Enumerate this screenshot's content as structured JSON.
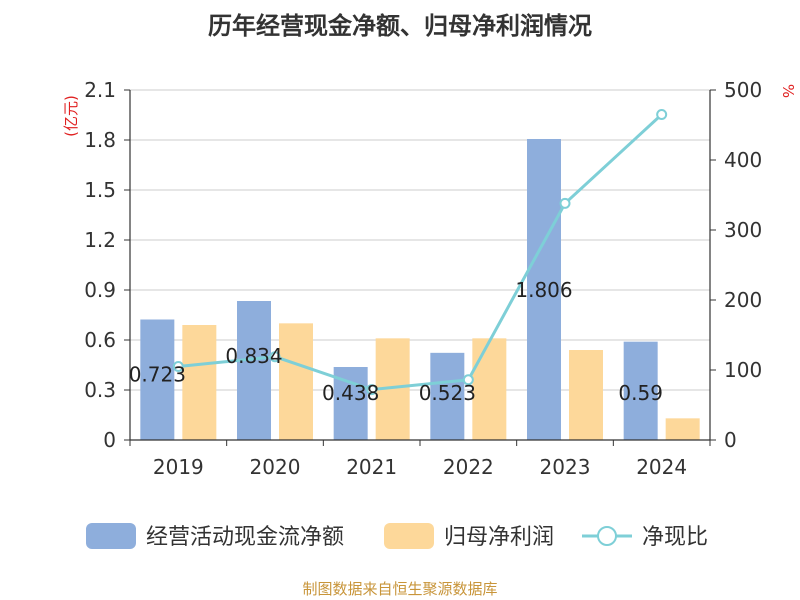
{
  "chart_data": {
    "type": "bar",
    "title": "历年经营现金净额、归母净利润情况",
    "categories": [
      "2019",
      "2020",
      "2021",
      "2022",
      "2023",
      "2024"
    ],
    "series": [
      {
        "name": "经营活动现金流净额",
        "type": "bar",
        "axis": "left",
        "color": "#8eaedc",
        "values": [
          0.723,
          0.834,
          0.438,
          0.523,
          1.806,
          0.59
        ]
      },
      {
        "name": "归母净利润",
        "type": "bar",
        "axis": "left",
        "color": "#fdd89a",
        "values": [
          0.69,
          0.7,
          0.61,
          0.61,
          0.54,
          0.13
        ]
      },
      {
        "name": "净现比",
        "type": "line",
        "axis": "right",
        "color": "#7ecfd7",
        "values": [
          105,
          119,
          72,
          86,
          338,
          465
        ]
      }
    ],
    "data_labels": [
      "0.723",
      "0.834",
      "0.438",
      "0.523",
      "1.806",
      "0.59"
    ],
    "left_axis": {
      "unit": "(亿元)",
      "ylim": [
        0,
        2.1
      ],
      "ticks": [
        "0",
        "0.3",
        "0.6",
        "0.9",
        "1.2",
        "1.5",
        "1.8",
        "2.1"
      ]
    },
    "right_axis": {
      "unit": "%",
      "ylim": [
        0,
        500
      ],
      "ticks": [
        "0",
        "100",
        "200",
        "300",
        "400",
        "500"
      ]
    },
    "legend_position": "bottom",
    "source": "制图数据来自恒生聚源数据库"
  }
}
